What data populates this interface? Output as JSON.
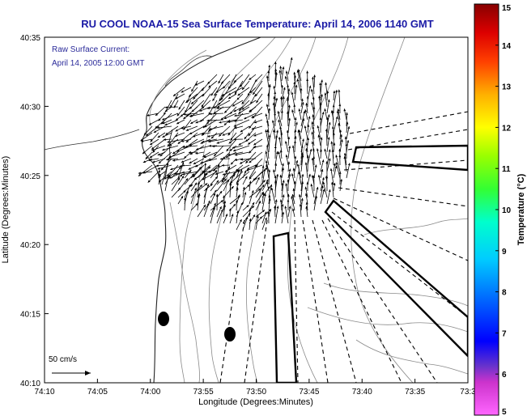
{
  "chart_data": {
    "type": "vector-field",
    "title": "RU COOL  NOAA-15  Sea Surface Temperature:  April 14, 2006 1140 GMT",
    "annotation_lines": [
      "Raw Surface Current:",
      "April 14, 2005 12:00 GMT"
    ],
    "xlabel": "Longitude (Degrees:Minutes)",
    "ylabel": "Latitude (Degrees:Minutes)",
    "x_ticks": [
      "74:10",
      "74:05",
      "74:00",
      "73:55",
      "73:50",
      "73:45",
      "73:40",
      "73:35",
      "73:3"
    ],
    "y_ticks": [
      "40:35",
      "40:30",
      "40:25",
      "40:20",
      "40:15",
      "40:10"
    ],
    "xlim_minutes_west": [
      250,
      210
    ],
    "ylim_minutes_north": [
      10,
      35
    ],
    "scale_vector": {
      "label": "50 cm/s",
      "speed_cm_s": 50
    },
    "colorbar": {
      "label": "Temperature (°C)",
      "range": [
        5,
        15
      ],
      "ticks": [
        "5",
        "6",
        "7",
        "8",
        "9",
        "10",
        "11",
        "12",
        "13",
        "14",
        "15"
      ],
      "colors": [
        "#ff66ff",
        "#6633cc",
        "#0000ff",
        "#0099ff",
        "#00ffff",
        "#00ff66",
        "#66ff00",
        "#ffff00",
        "#ff9900",
        "#ff0000",
        "#990000"
      ]
    },
    "land_color": "#ffffff",
    "grid": false
  }
}
